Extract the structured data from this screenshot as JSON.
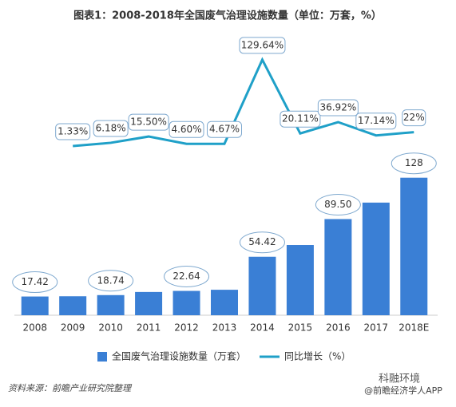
{
  "chart_data": {
    "type": "bar_line",
    "title": "图表1：2008-2018年全国废气治理设施数量（单位：万套，%）",
    "categories": [
      "2008",
      "2009",
      "2010",
      "2011",
      "2012",
      "2013",
      "2014",
      "2015",
      "2016",
      "2017",
      "2018E"
    ],
    "series": [
      {
        "name": "全国废气治理设施数量（万套）",
        "type": "bar",
        "color": "#3a7fd5",
        "values": [
          17.42,
          17.65,
          18.74,
          21.64,
          22.64,
          23.7,
          54.42,
          65.36,
          89.5,
          104.84,
          128
        ],
        "value_labels": [
          "17.42",
          null,
          "18.74",
          null,
          "22.64",
          null,
          "54.42",
          null,
          "89.50",
          null,
          "128"
        ]
      },
      {
        "name": "同比增长（%）",
        "type": "line",
        "axis": "y2",
        "color": "#1fa0c8",
        "values": [
          null,
          1.33,
          6.18,
          15.5,
          4.6,
          4.67,
          129.64,
          20.11,
          36.92,
          17.14,
          22
        ],
        "value_labels": [
          null,
          "1.33%",
          "6.18%",
          "15.50%",
          "4.60%",
          "4.67%",
          "129.64%",
          "20.11%",
          "36.92%",
          "17.14%",
          "22%"
        ]
      }
    ],
    "ylim": [
      0,
      260
    ],
    "y2lim": [
      -250,
      165
    ],
    "source": "资料来源：前瞻产业研究院整理",
    "logo": "科融环境",
    "watermark": "@前瞻经济学人APP"
  }
}
